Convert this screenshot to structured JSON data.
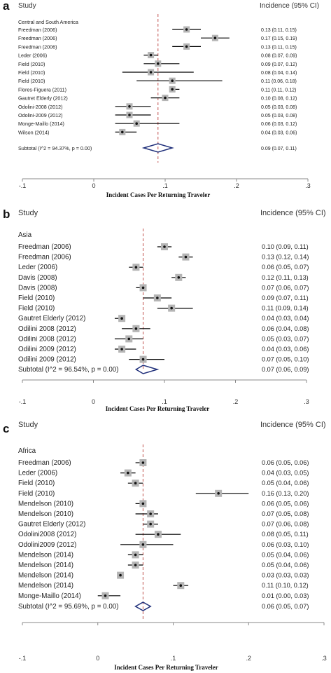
{
  "chart_data": [
    {
      "type": "forest",
      "panel": "a",
      "header": {
        "study": "Study",
        "incidence": "Incidence (95% CI)"
      },
      "subgroup": "Central and South America",
      "xlabel": "Incident Cases Per Returning Traveler",
      "xlim": [
        -0.1,
        0.3
      ],
      "ticks": [
        {
          "v": -0.1,
          "label": "-.1"
        },
        {
          "v": 0,
          "label": "0"
        },
        {
          "v": 0.1,
          "label": ".1"
        },
        {
          "v": 0.2,
          "label": ".2"
        },
        {
          "v": 0.3,
          "label": ".3"
        }
      ],
      "pooled_line": 0.09,
      "studies": [
        {
          "name": "Freedman (2006)",
          "est": 0.13,
          "lo": 0.11,
          "hi": 0.15,
          "ci": "0.13 (0.11, 0.15)"
        },
        {
          "name": "Freedman (2006)",
          "est": 0.17,
          "lo": 0.15,
          "hi": 0.19,
          "ci": "0.17 (0.15, 0.19)"
        },
        {
          "name": "Freedman (2006)",
          "est": 0.13,
          "lo": 0.11,
          "hi": 0.15,
          "ci": "0.13 (0.11, 0.15)"
        },
        {
          "name": "Leder (2006)",
          "est": 0.08,
          "lo": 0.07,
          "hi": 0.09,
          "ci": "0.08 (0.07, 0.09)"
        },
        {
          "name": "Field (2010)",
          "est": 0.09,
          "lo": 0.07,
          "hi": 0.12,
          "ci": "0.09 (0.07, 0.12)"
        },
        {
          "name": "Field (2010)",
          "est": 0.08,
          "lo": 0.04,
          "hi": 0.14,
          "ci": "0.08 (0.04, 0.14)"
        },
        {
          "name": "Field (2010)",
          "est": 0.11,
          "lo": 0.06,
          "hi": 0.18,
          "ci": "0.11 (0.06, 0.18)"
        },
        {
          "name": "Flores-Figuera (2011)",
          "est": 0.11,
          "lo": 0.11,
          "hi": 0.12,
          "ci": "0.11 (0.11, 0.12)"
        },
        {
          "name": "Gautret Elderly (2012)",
          "est": 0.1,
          "lo": 0.08,
          "hi": 0.12,
          "ci": "0.10 (0.08, 0.12)"
        },
        {
          "name": "Odolini-2008 (2012)",
          "est": 0.05,
          "lo": 0.03,
          "hi": 0.08,
          "ci": "0.05 (0.03, 0.08)"
        },
        {
          "name": "Odolini-2009 (2012)",
          "est": 0.05,
          "lo": 0.03,
          "hi": 0.08,
          "ci": "0.05 (0.03, 0.08)"
        },
        {
          "name": "Monge-Maillo (2014)",
          "est": 0.06,
          "lo": 0.03,
          "hi": 0.12,
          "ci": "0.06 (0.03, 0.12)"
        },
        {
          "name": "Wilson (2014)",
          "est": 0.04,
          "lo": 0.03,
          "hi": 0.06,
          "ci": "0.04 (0.03, 0.06)"
        }
      ],
      "subtotal": {
        "name": "Subtotal  (I^2 = 94.37%, p = 0.00)",
        "est": 0.09,
        "lo": 0.07,
        "hi": 0.11,
        "ci": "0.09 (0.07, 0.11)"
      }
    },
    {
      "type": "forest",
      "panel": "b",
      "header": {
        "study": "Study",
        "incidence": "Incidence  (95% CI)"
      },
      "subgroup": "Asia",
      "xlabel": "Incident Cases Per Returning Traveler",
      "xlim": [
        -0.1,
        0.3
      ],
      "ticks": [
        {
          "v": -0.1,
          "label": "-.1"
        },
        {
          "v": 0,
          "label": "0"
        },
        {
          "v": 0.1,
          "label": ".1"
        },
        {
          "v": 0.2,
          "label": ".2"
        },
        {
          "v": 0.3,
          "label": ".3"
        }
      ],
      "pooled_line": 0.07,
      "studies": [
        {
          "name": "Freedman (2006)",
          "est": 0.1,
          "lo": 0.09,
          "hi": 0.11,
          "ci": "0.10 (0.09, 0.11)"
        },
        {
          "name": "Freedman (2006)",
          "est": 0.13,
          "lo": 0.12,
          "hi": 0.14,
          "ci": "0.13 (0.12, 0.14)"
        },
        {
          "name": "Leder (2006)",
          "est": 0.06,
          "lo": 0.05,
          "hi": 0.07,
          "ci": "0.06 (0.05, 0.07)"
        },
        {
          "name": "Davis (2008)",
          "est": 0.12,
          "lo": 0.11,
          "hi": 0.13,
          "ci": "0.12 (0.11, 0.13)"
        },
        {
          "name": "Davis (2008)",
          "est": 0.07,
          "lo": 0.06,
          "hi": 0.07,
          "ci": "0.07 (0.06, 0.07)"
        },
        {
          "name": "Field (2010)",
          "est": 0.09,
          "lo": 0.07,
          "hi": 0.11,
          "ci": "0.09 (0.07, 0.11)"
        },
        {
          "name": "Field (2010)",
          "est": 0.11,
          "lo": 0.09,
          "hi": 0.14,
          "ci": "0.11 (0.09, 0.14)"
        },
        {
          "name": "Gautret Elderly (2012)",
          "est": 0.04,
          "lo": 0.03,
          "hi": 0.04,
          "ci": "0.04 (0.03, 0.04)"
        },
        {
          "name": "Odilini 2008 (2012)",
          "est": 0.06,
          "lo": 0.04,
          "hi": 0.08,
          "ci": "0.06 (0.04, 0.08)"
        },
        {
          "name": "Odilini 2008 (2012)",
          "est": 0.05,
          "lo": 0.03,
          "hi": 0.07,
          "ci": "0.05 (0.03, 0.07)"
        },
        {
          "name": "Odilini 2009 (2012)",
          "est": 0.04,
          "lo": 0.03,
          "hi": 0.06,
          "ci": "0.04 (0.03, 0.06)"
        },
        {
          "name": "Odilini 2009 (2012)",
          "est": 0.07,
          "lo": 0.05,
          "hi": 0.1,
          "ci": "0.07 (0.05, 0.10)"
        }
      ],
      "subtotal": {
        "name": "Subtotal  (I^2 = 96.54%, p = 0.00)",
        "est": 0.07,
        "lo": 0.06,
        "hi": 0.09,
        "ci": "0.07 (0.06, 0.09)"
      }
    },
    {
      "type": "forest",
      "panel": "c",
      "header": {
        "study": "Study",
        "incidence": "Incidence (95% CI)"
      },
      "subgroup": "Africa",
      "xlabel": "Incident Cases Per Returning Traveler",
      "xlim": [
        -0.1,
        0.3
      ],
      "ticks": [
        {
          "v": -0.1,
          "label": "-.1"
        },
        {
          "v": 0,
          "label": "0"
        },
        {
          "v": 0.1,
          "label": ".1"
        },
        {
          "v": 0.2,
          "label": ".2"
        },
        {
          "v": 0.3,
          "label": ".3"
        }
      ],
      "pooled_line": 0.06,
      "studies": [
        {
          "name": "Freedman (2006)",
          "est": 0.06,
          "lo": 0.05,
          "hi": 0.06,
          "ci": "0.06 (0.05, 0.06)"
        },
        {
          "name": "Leder (2006)",
          "est": 0.04,
          "lo": 0.03,
          "hi": 0.05,
          "ci": "0.04 (0.03, 0.05)"
        },
        {
          "name": "Field (2010)",
          "est": 0.05,
          "lo": 0.04,
          "hi": 0.06,
          "ci": "0.05 (0.04, 0.06)"
        },
        {
          "name": "Field (2010)",
          "est": 0.16,
          "lo": 0.13,
          "hi": 0.2,
          "ci": "0.16 (0.13, 0.20)"
        },
        {
          "name": "Mendelson (2010)",
          "est": 0.06,
          "lo": 0.05,
          "hi": 0.06,
          "ci": "0.06 (0.05, 0.06)"
        },
        {
          "name": "Mendelson (2010)",
          "est": 0.07,
          "lo": 0.05,
          "hi": 0.08,
          "ci": "0.07 (0.05, 0.08)"
        },
        {
          "name": "Gautret Elderly (2012)",
          "est": 0.07,
          "lo": 0.06,
          "hi": 0.08,
          "ci": "0.07 (0.06, 0.08)"
        },
        {
          "name": "Odolini2008 (2012)",
          "est": 0.08,
          "lo": 0.05,
          "hi": 0.11,
          "ci": "0.08 (0.05, 0.11)"
        },
        {
          "name": "Odolini2009 (2012)",
          "est": 0.06,
          "lo": 0.03,
          "hi": 0.1,
          "ci": "0.06 (0.03, 0.10)"
        },
        {
          "name": "Mendelson (2014)",
          "est": 0.05,
          "lo": 0.04,
          "hi": 0.06,
          "ci": "0.05 (0.04, 0.06)"
        },
        {
          "name": "Mendelson (2014)",
          "est": 0.05,
          "lo": 0.04,
          "hi": 0.06,
          "ci": "0.05 (0.04, 0.06)"
        },
        {
          "name": "Mendelson (2014)",
          "est": 0.03,
          "lo": 0.03,
          "hi": 0.03,
          "ci": "0.03 (0.03, 0.03)"
        },
        {
          "name": "Mendelson (2014)",
          "est": 0.11,
          "lo": 0.1,
          "hi": 0.12,
          "ci": "0.11 (0.10, 0.12)"
        },
        {
          "name": "Monge-Maillo (2014)",
          "est": 0.01,
          "lo": 0.0,
          "hi": 0.03,
          "ci": "0.01 (0.00, 0.03)"
        }
      ],
      "subtotal": {
        "name": "Subtotal  (I^2 = 95.69%, p = 0.00)",
        "est": 0.06,
        "lo": 0.05,
        "hi": 0.07,
        "ci": "0.06 (0.05, 0.07)"
      }
    }
  ],
  "colors": {
    "marker": "#b5b5b5",
    "ci_line": "#000000",
    "pooled_line": "#c0504d",
    "diamond": "#1f2f7a"
  }
}
